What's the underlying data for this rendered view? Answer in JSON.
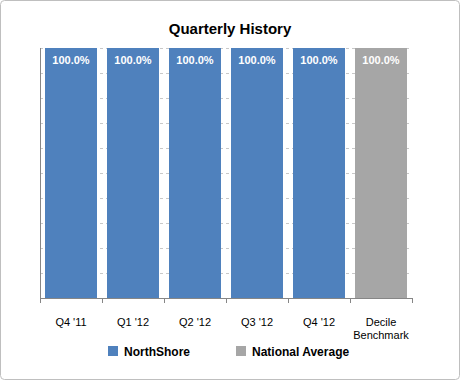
{
  "chart_data": {
    "type": "bar",
    "title": "Quarterly History",
    "categories": [
      "Q4 '11",
      "Q1 '12",
      "Q2 '12",
      "Q3 '12",
      "Q4 '12",
      "Decile Benchmark"
    ],
    "series": [
      {
        "name": "NorthShore",
        "color": "#4f81bd",
        "values": [
          100,
          100,
          100,
          100,
          100,
          null
        ],
        "value_labels": [
          "100.0%",
          "100.0%",
          "100.0%",
          "100.0%",
          "100.0%",
          null
        ]
      },
      {
        "name": "National Average",
        "color": "#a6a6a6",
        "values": [
          null,
          null,
          null,
          null,
          null,
          100
        ],
        "value_labels": [
          null,
          null,
          null,
          null,
          null,
          "100.0%"
        ]
      }
    ],
    "ylim": [
      0,
      100
    ],
    "yticks": [
      0,
      10,
      20,
      30,
      40,
      50,
      60,
      70,
      80,
      90,
      100
    ],
    "grid": true,
    "data_labels": true,
    "tick_labels": "x",
    "legend": "bottom"
  }
}
